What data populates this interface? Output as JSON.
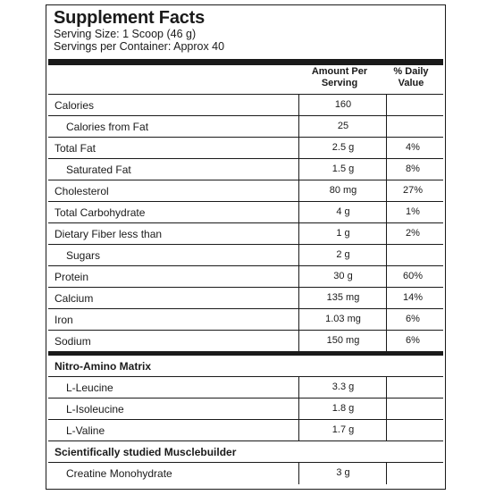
{
  "title": "Supplement Facts",
  "serving_size": "Serving Size: 1 Scoop (46 g)",
  "servings_per_container": "Servings per Container: Approx 40",
  "columns": {
    "amount_line1": "Amount Per",
    "amount_line2": "Serving",
    "dv_line1": "% Daily",
    "dv_line2": "Value"
  },
  "nutrients": [
    {
      "name": "Calories",
      "amount": "160",
      "dv": ""
    },
    {
      "name": "Calories from Fat",
      "amount": "25",
      "dv": ""
    },
    {
      "name": "Total Fat",
      "amount": "2.5 g",
      "dv": "4%"
    },
    {
      "name": "Saturated Fat",
      "amount": "1.5 g",
      "dv": "8%"
    },
    {
      "name": "Cholesterol",
      "amount": "80 mg",
      "dv": "27%"
    },
    {
      "name": "Total Carbohydrate",
      "amount": "4 g",
      "dv": "1%"
    },
    {
      "name": "Dietary Fiber less than",
      "amount": "1 g",
      "dv": "2%"
    },
    {
      "name": "Sugars",
      "amount": "2 g",
      "dv": ""
    },
    {
      "name": "Protein",
      "amount": "30 g",
      "dv": "60%"
    },
    {
      "name": "Calcium",
      "amount": "135 mg",
      "dv": "14%"
    },
    {
      "name": "Iron",
      "amount": "1.03 mg",
      "dv": "6%"
    },
    {
      "name": "Sodium",
      "amount": "150 mg",
      "dv": "6%"
    }
  ],
  "nitro_section": {
    "title": "Nitro-Amino Matrix",
    "items": [
      {
        "name": "L-Leucine",
        "amount": "3.3 g"
      },
      {
        "name": "L-Isoleucine",
        "amount": "1.8 g"
      },
      {
        "name": "L-Valine",
        "amount": "1.7 g"
      }
    ]
  },
  "muscle_section": {
    "title": "Scientifically studied Musclebuilder",
    "items": [
      {
        "name": "Creatine Monohydrate",
        "amount": "3 g"
      }
    ]
  }
}
